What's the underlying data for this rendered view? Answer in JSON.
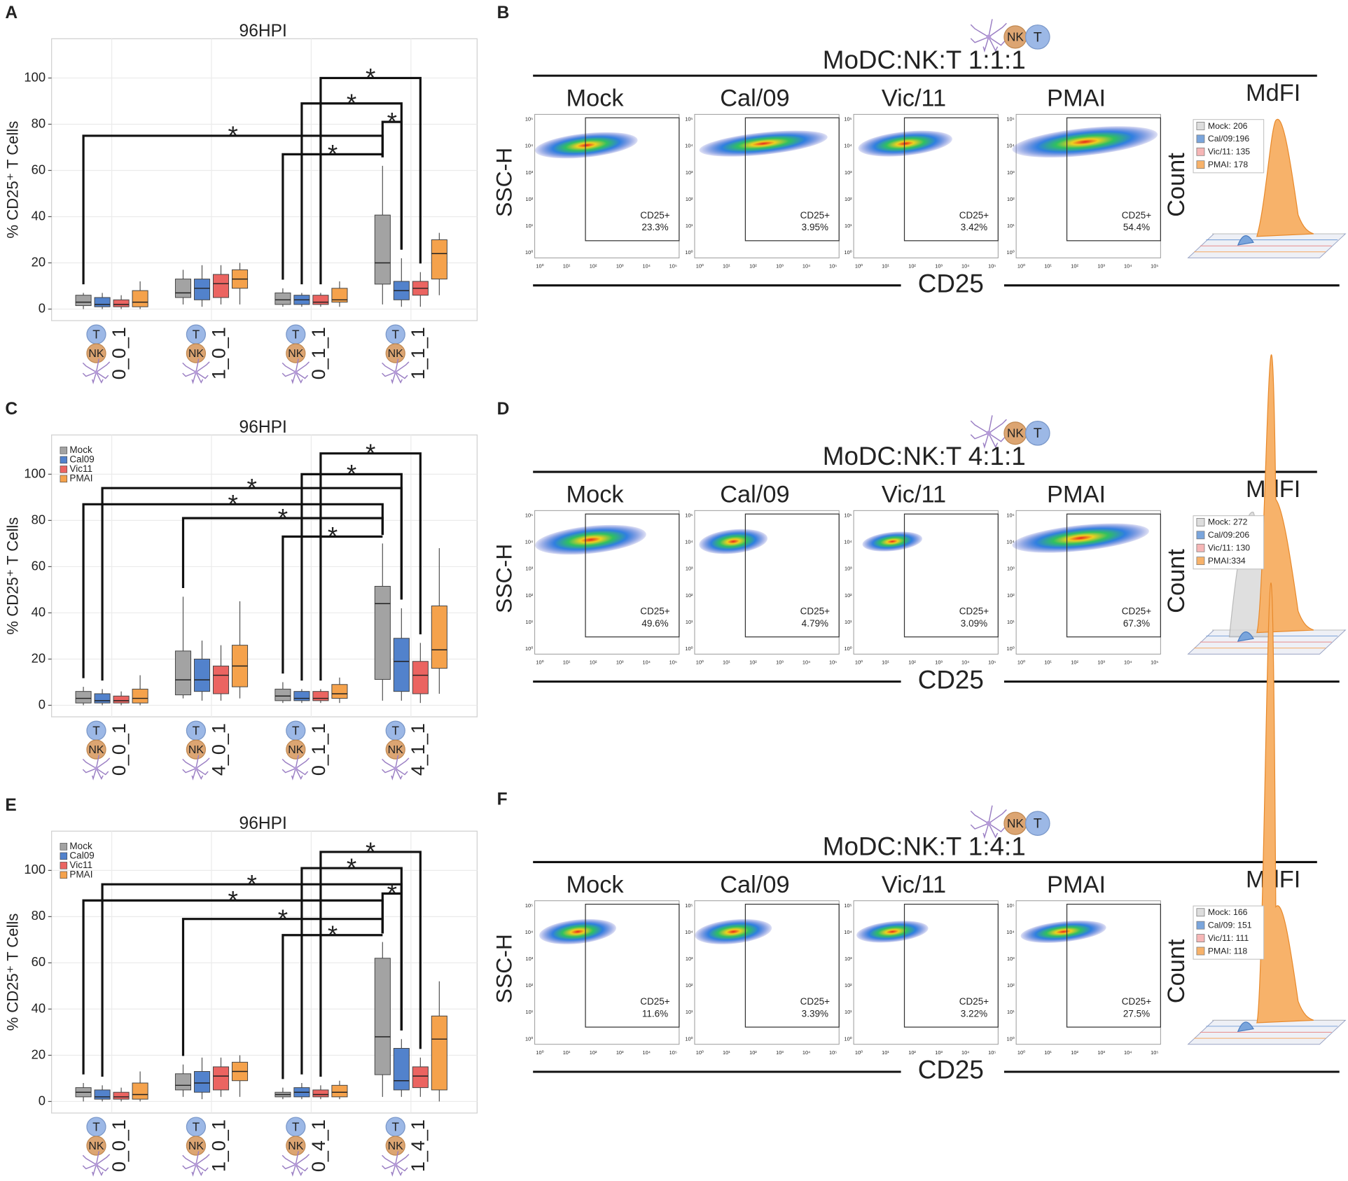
{
  "chart_data": [
    {
      "type": "box",
      "panel_label": "A",
      "title": "96HPI",
      "y_label": "% CD25⁺ T Cells",
      "categories": [
        "0_0_1",
        "1_0_1",
        "0_1_1",
        "1_1_1"
      ],
      "icon_labels": [
        "T",
        "NK"
      ],
      "ylim": [
        -5,
        117
      ],
      "yticks": [
        0,
        20,
        40,
        60,
        80,
        100
      ],
      "grid": true,
      "legend": false,
      "series": [
        {
          "name": "Mock",
          "color": "#a3a3a3",
          "values": [
            {
              "min": 0,
              "q1": 1.5,
              "median": 3,
              "q3": 6,
              "max": 7
            },
            {
              "min": 2,
              "q1": 5,
              "median": 7,
              "q3": 13,
              "max": 17
            },
            {
              "min": 1,
              "q1": 2,
              "median": 4,
              "q3": 7,
              "max": 9
            },
            {
              "min": 2,
              "q1": 10.8,
              "median": 20,
              "q3": 40.7,
              "max": 62
            }
          ]
        },
        {
          "name": "Cal09",
          "color": "#5282cc",
          "values": [
            {
              "min": 0,
              "q1": 1,
              "median": 2,
              "q3": 5,
              "max": 7
            },
            {
              "min": 1,
              "q1": 4,
              "median": 9,
              "q3": 13,
              "max": 19
            },
            {
              "min": 1,
              "q1": 2,
              "median": 4,
              "q3": 6,
              "max": 7
            },
            {
              "min": 1,
              "q1": 4,
              "median": 8,
              "q3": 12,
              "max": 22
            }
          ]
        },
        {
          "name": "Vic11",
          "color": "#eb6461",
          "values": [
            {
              "min": 0,
              "q1": 1,
              "median": 2,
              "q3": 4,
              "max": 6
            },
            {
              "min": 2,
              "q1": 5,
              "median": 11,
              "q3": 15,
              "max": 19
            },
            {
              "min": 1,
              "q1": 2,
              "median": 3,
              "q3": 6,
              "max": 7
            },
            {
              "min": 1,
              "q1": 6,
              "median": 9,
              "q3": 12,
              "max": 16
            }
          ]
        },
        {
          "name": "PMAI",
          "color": "#f5a24c",
          "values": [
            {
              "min": 0,
              "q1": 1,
              "median": 3,
              "q3": 8,
              "max": 12
            },
            {
              "min": 2,
              "q1": 9,
              "median": 13,
              "q3": 17,
              "max": 20
            },
            {
              "min": 1,
              "q1": 3,
              "median": 4,
              "q3": 9,
              "max": 12
            },
            {
              "min": 6,
              "q1": 13,
              "median": 24,
              "q3": 30,
              "max": 33
            }
          ]
        }
      ],
      "annotations": [
        "*",
        "*",
        "*",
        "*",
        "*"
      ]
    },
    {
      "type": "box",
      "panel_label": "C",
      "title": "96HPI",
      "y_label": "% CD25⁺ T Cells",
      "categories": [
        "0_0_1",
        "4_0_1",
        "0_1_1",
        "4_1_1"
      ],
      "icon_labels": [
        "T",
        "NK"
      ],
      "ylim": [
        -5,
        117
      ],
      "yticks": [
        0,
        20,
        40,
        60,
        80,
        100
      ],
      "grid": true,
      "legend": true,
      "series": [
        {
          "name": "Mock",
          "color": "#a3a3a3",
          "values": [
            {
              "min": 0,
              "q1": 1,
              "median": 3,
              "q3": 6,
              "max": 8
            },
            {
              "min": 3,
              "q1": 4.5,
              "median": 11,
              "q3": 23.5,
              "max": 47
            },
            {
              "min": 1,
              "q1": 2,
              "median": 4,
              "q3": 7,
              "max": 10
            },
            {
              "min": 2,
              "q1": 11.2,
              "median": 44,
              "q3": 51.5,
              "max": 70
            }
          ]
        },
        {
          "name": "Cal09",
          "color": "#5282cc",
          "values": [
            {
              "min": 0,
              "q1": 1,
              "median": 2,
              "q3": 5,
              "max": 7
            },
            {
              "min": 2,
              "q1": 6,
              "median": 11,
              "q3": 20,
              "max": 28
            },
            {
              "min": 1,
              "q1": 2,
              "median": 3,
              "q3": 6,
              "max": 7
            },
            {
              "min": 2,
              "q1": 6,
              "median": 19,
              "q3": 29,
              "max": 42
            }
          ]
        },
        {
          "name": "Vic11",
          "color": "#eb6461",
          "values": [
            {
              "min": 0,
              "q1": 1,
              "median": 2,
              "q3": 4,
              "max": 6
            },
            {
              "min": 2,
              "q1": 5,
              "median": 13,
              "q3": 17,
              "max": 26
            },
            {
              "min": 1,
              "q1": 2,
              "median": 3,
              "q3": 6,
              "max": 7
            },
            {
              "min": 1,
              "q1": 5,
              "median": 13,
              "q3": 19,
              "max": 27
            }
          ]
        },
        {
          "name": "PMAI",
          "color": "#f5a24c",
          "values": [
            {
              "min": 0,
              "q1": 1,
              "median": 3,
              "q3": 7,
              "max": 13
            },
            {
              "min": 3,
              "q1": 8,
              "median": 17,
              "q3": 26,
              "max": 45
            },
            {
              "min": 1,
              "q1": 3,
              "median": 5,
              "q3": 9,
              "max": 12
            },
            {
              "min": 5,
              "q1": 16,
              "median": 24,
              "q3": 43,
              "max": 68
            }
          ]
        }
      ],
      "annotations": [
        "*",
        "*",
        "*",
        "*",
        "*",
        "*"
      ]
    },
    {
      "type": "box",
      "panel_label": "E",
      "title": "96HPI",
      "y_label": "% CD25⁺ T Cells",
      "categories": [
        "0_0_1",
        "1_0_1",
        "0_4_1",
        "1_4_1"
      ],
      "icon_labels": [
        "T",
        "NK"
      ],
      "ylim": [
        -5,
        117
      ],
      "yticks": [
        0,
        20,
        40,
        60,
        80,
        100
      ],
      "grid": true,
      "legend": true,
      "series": [
        {
          "name": "Mock",
          "color": "#a3a3a3",
          "values": [
            {
              "min": 0,
              "q1": 2,
              "median": 4,
              "q3": 6,
              "max": 8
            },
            {
              "min": 2,
              "q1": 5,
              "median": 7,
              "q3": 12,
              "max": 16
            },
            {
              "min": 1,
              "q1": 2,
              "median": 3,
              "q3": 4,
              "max": 6
            },
            {
              "min": 2,
              "q1": 11.6,
              "median": 28,
              "q3": 62,
              "max": 69
            }
          ]
        },
        {
          "name": "Cal09",
          "color": "#5282cc",
          "values": [
            {
              "min": 0,
              "q1": 1,
              "median": 2,
              "q3": 5,
              "max": 7
            },
            {
              "min": 1,
              "q1": 4,
              "median": 8,
              "q3": 13,
              "max": 19
            },
            {
              "min": 1,
              "q1": 2,
              "median": 4,
              "q3": 6,
              "max": 8
            },
            {
              "min": 2,
              "q1": 5,
              "median": 9,
              "q3": 23,
              "max": 27
            }
          ]
        },
        {
          "name": "Vic11",
          "color": "#eb6461",
          "values": [
            {
              "min": 0,
              "q1": 1,
              "median": 2,
              "q3": 4,
              "max": 6
            },
            {
              "min": 2,
              "q1": 5,
              "median": 11,
              "q3": 15,
              "max": 19
            },
            {
              "min": 1,
              "q1": 2,
              "median": 3,
              "q3": 5,
              "max": 7
            },
            {
              "min": 2,
              "q1": 6,
              "median": 11,
              "q3": 15,
              "max": 19
            }
          ]
        },
        {
          "name": "PMAI",
          "color": "#f5a24c",
          "values": [
            {
              "min": 0,
              "q1": 1,
              "median": 3,
              "q3": 8,
              "max": 13
            },
            {
              "min": 2,
              "q1": 9,
              "median": 13,
              "q3": 17,
              "max": 20
            },
            {
              "min": 1,
              "q1": 2,
              "median": 4,
              "q3": 7,
              "max": 9
            },
            {
              "min": 0,
              "q1": 5,
              "median": 27,
              "q3": 37,
              "max": 52
            }
          ]
        }
      ],
      "annotations": [
        "*",
        "*",
        "*",
        "*",
        "*",
        "*",
        "*"
      ]
    }
  ],
  "flow_panels": [
    {
      "panel_label": "B",
      "title": "MoDC:NK:T 1:1:1",
      "icon_labels": [
        "NK",
        "T"
      ],
      "y_label": "SSC-H",
      "x_label": "CD25",
      "decades": [
        "10⁰",
        "10¹",
        "10²",
        "10³",
        "10⁴",
        "10⁵"
      ],
      "gate_label": "CD25+",
      "conditions": [
        {
          "name": "Mock",
          "color": "#111111",
          "percent": "23.3%"
        },
        {
          "name": "Cal/09",
          "color": "#1c2c52",
          "percent": "3.95%"
        },
        {
          "name": "Vic/11",
          "color": "#6b1a1a",
          "percent": "3.42%"
        },
        {
          "name": "PMAI",
          "color": "#5c3b10",
          "percent": "54.4%"
        }
      ],
      "hist_title": "MdFI",
      "hist_y_label": "Count",
      "mdfi": [
        "Mock: 206",
        "Cal/09:196",
        "Vic/11: 135",
        "PMAI: 178"
      ]
    },
    {
      "panel_label": "D",
      "title": "MoDC:NK:T 4:1:1",
      "icon_labels": [
        "NK",
        "T"
      ],
      "y_label": "SSC-H",
      "x_label": "CD25",
      "decades": [
        "10⁰",
        "10¹",
        "10²",
        "10³",
        "10⁴",
        "10⁵"
      ],
      "gate_label": "CD25+",
      "conditions": [
        {
          "name": "Mock",
          "color": "#111111",
          "percent": "49.6%"
        },
        {
          "name": "Cal/09",
          "color": "#1c2c52",
          "percent": "4.79%"
        },
        {
          "name": "Vic/11",
          "color": "#6b1a1a",
          "percent": "3.09%"
        },
        {
          "name": "PMAI",
          "color": "#5c3b10",
          "percent": "67.3%"
        }
      ],
      "hist_title": "MdFI",
      "hist_y_label": "Count",
      "mdfi": [
        "Mock: 272",
        "Cal/09:206",
        "Vic/11: 130",
        "PMAI:334"
      ]
    },
    {
      "panel_label": "F",
      "title": "MoDC:NK:T 1:4:1",
      "icon_labels": [
        "NK",
        "T"
      ],
      "y_label": "SSC-H",
      "x_label": "CD25",
      "decades": [
        "10⁰",
        "10¹",
        "10²",
        "10³",
        "10⁴",
        "10⁵"
      ],
      "gate_label": "CD25+",
      "conditions": [
        {
          "name": "Mock",
          "color": "#111111",
          "percent": "11.6%"
        },
        {
          "name": "Cal/09",
          "color": "#1c2c52",
          "percent": "3.39%"
        },
        {
          "name": "Vic/11",
          "color": "#6b1a1a",
          "percent": "3.22%"
        },
        {
          "name": "PMAI",
          "color": "#5c3b10",
          "percent": "27.5%"
        }
      ],
      "hist_title": "MdFI",
      "hist_y_label": "Count",
      "mdfi": [
        "Mock: 166",
        "Cal/09: 151",
        "Vic/11: 111",
        "PMAI: 118"
      ]
    }
  ]
}
